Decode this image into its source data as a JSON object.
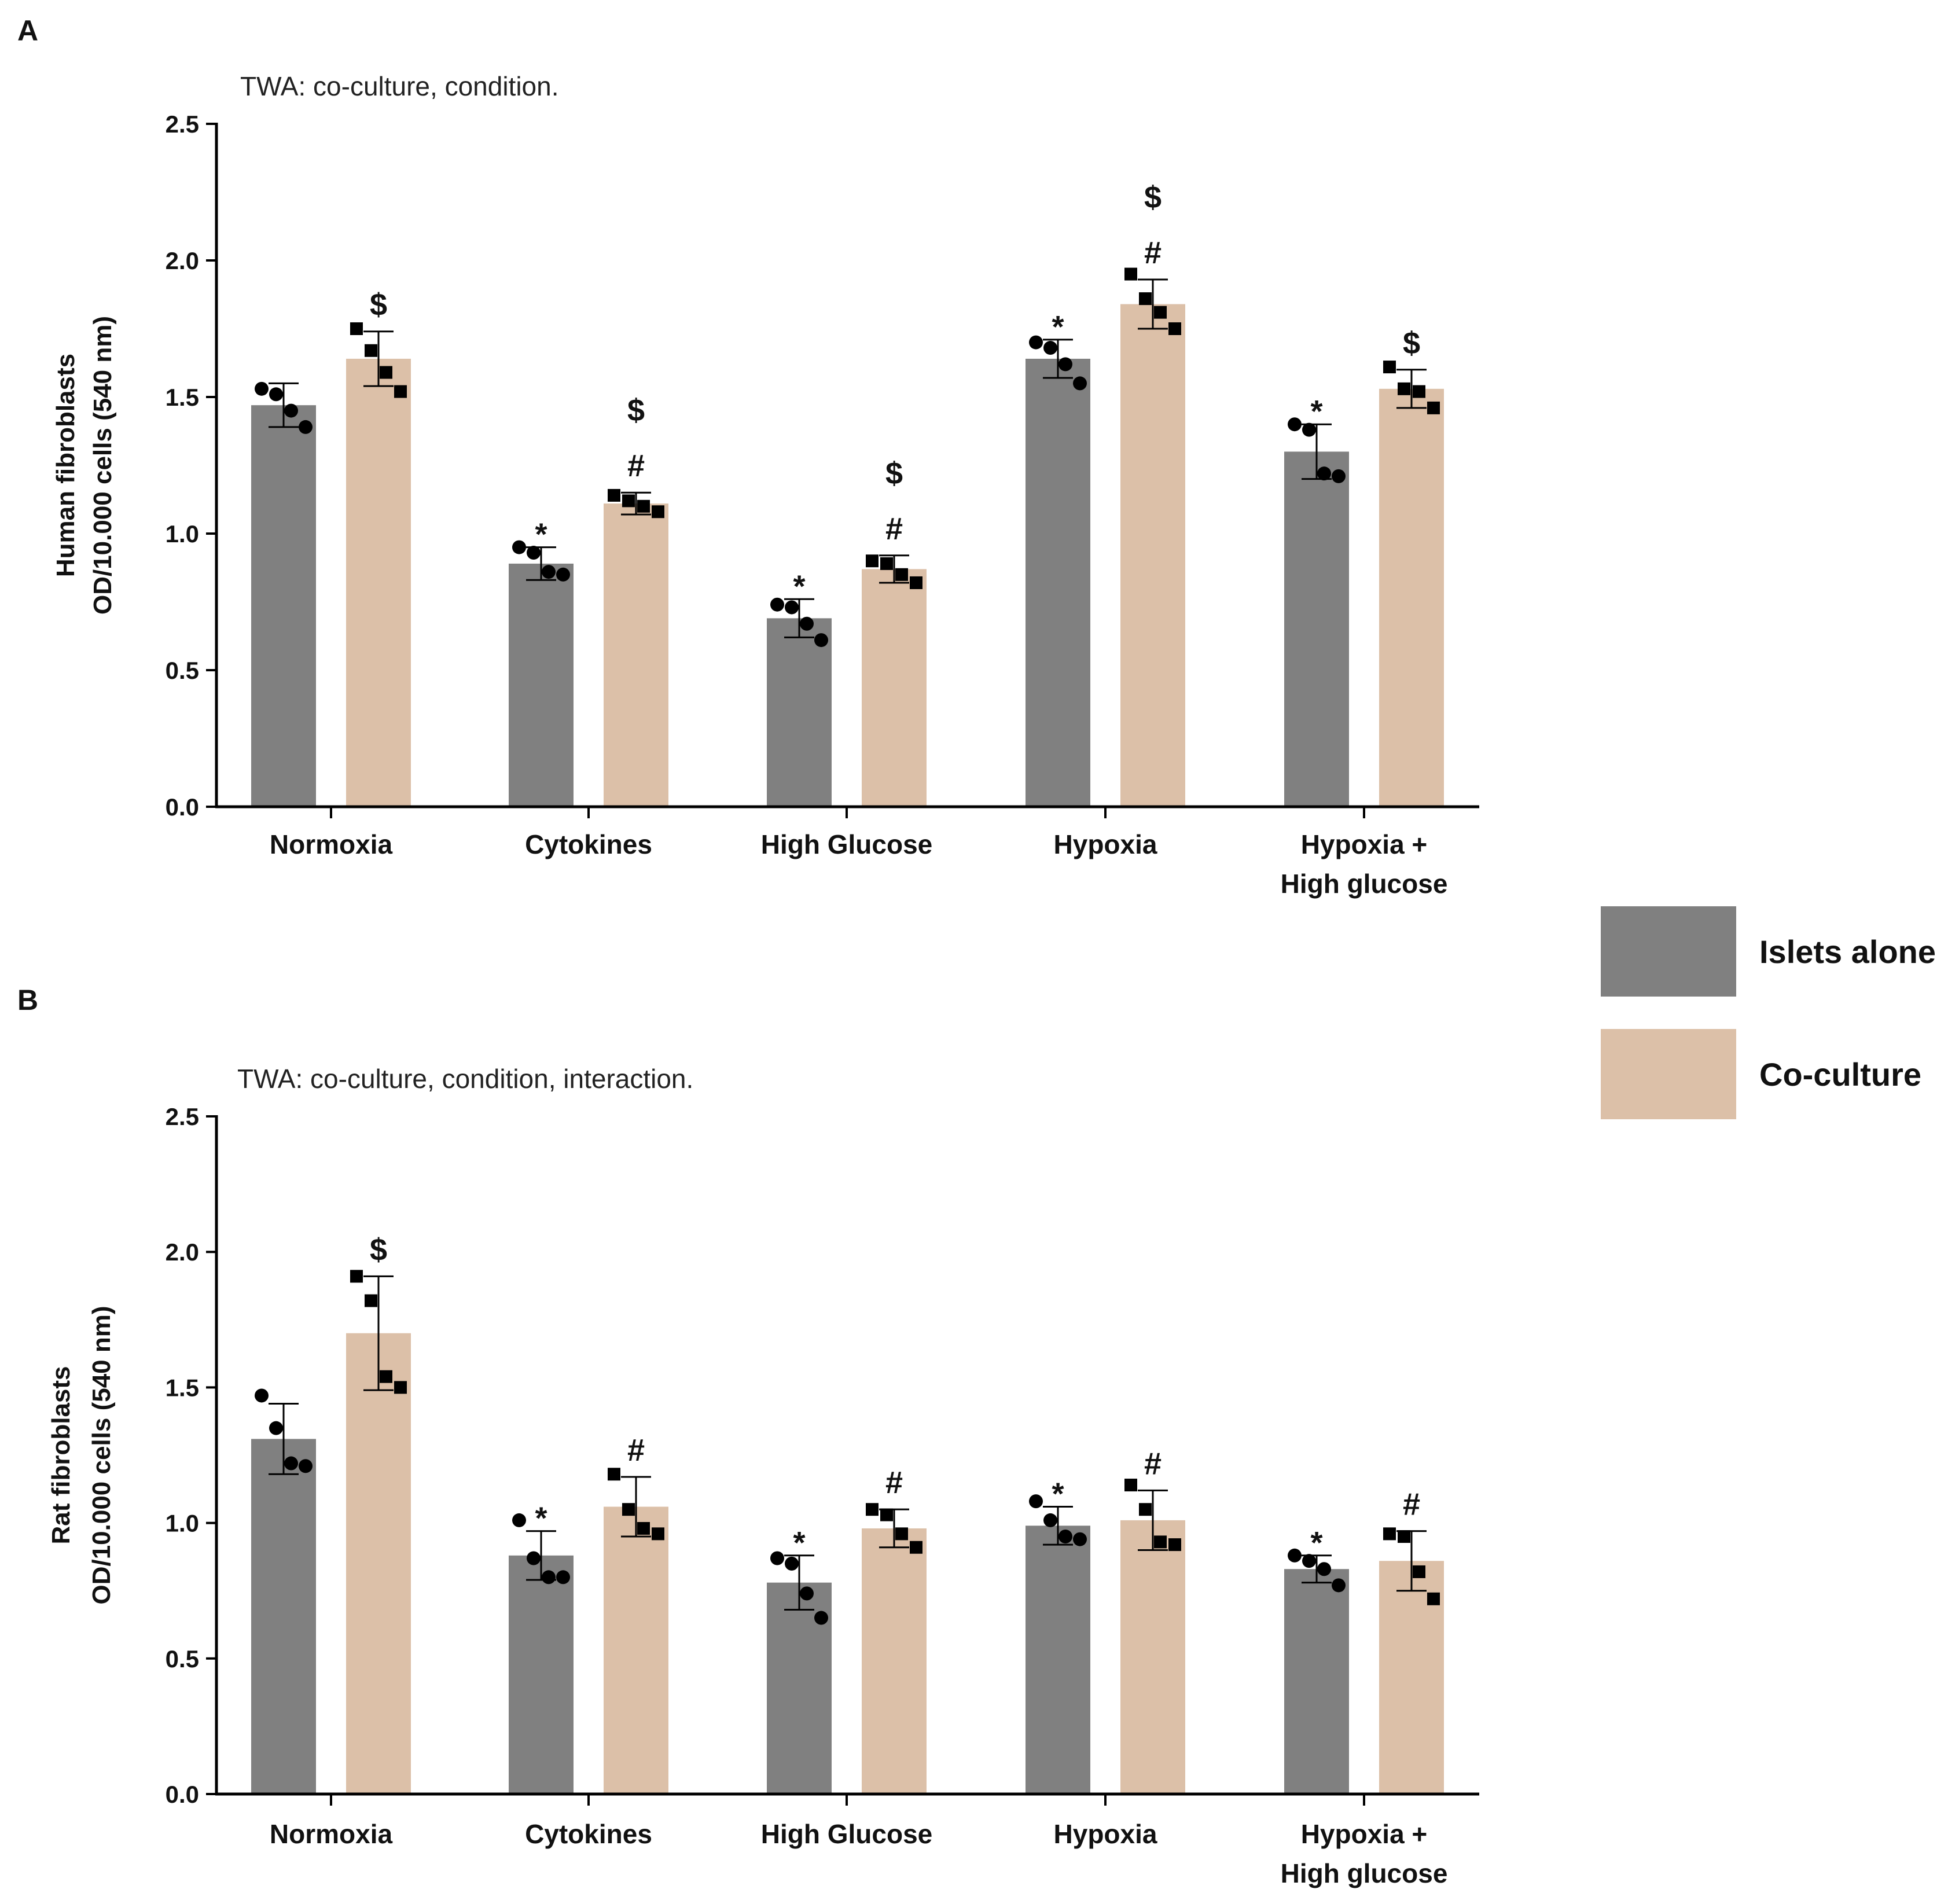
{
  "colors": {
    "islets_alone": "#808080",
    "co_culture": "#dcc0a8",
    "axis": "#000000",
    "points": "#000000"
  },
  "legend": {
    "items": [
      {
        "label": "Islets alone",
        "color": "#808080"
      },
      {
        "label": "Co-culture",
        "color": "#dcc0a8"
      }
    ]
  },
  "chart_data": [
    {
      "panel": "A",
      "type": "bar",
      "title": "TWA: co-culture, condition.",
      "ylabel": [
        "Human fibroblasts",
        "OD/10.000 cells (540 nm)"
      ],
      "ylim": [
        0,
        2.5
      ],
      "yticks": [
        0.0,
        0.5,
        1.0,
        1.5,
        2.0,
        2.5
      ],
      "ytick_labels": [
        "0.0",
        "0.5",
        "1.0",
        "1.5",
        "2.0",
        "2.5"
      ],
      "categories": [
        [
          "Normoxia"
        ],
        [
          "Cytokines"
        ],
        [
          "High Glucose"
        ],
        [
          "Hypoxia"
        ],
        [
          "Hypoxia +",
          "High glucose"
        ]
      ],
      "series": [
        {
          "name": "Islets alone",
          "marker": "circle",
          "values": [
            1.47,
            0.89,
            0.69,
            1.64,
            1.3
          ],
          "errors": [
            0.08,
            0.06,
            0.07,
            0.07,
            0.1
          ],
          "points": [
            [
              1.53,
              1.51,
              1.45,
              1.39
            ],
            [
              0.95,
              0.93,
              0.86,
              0.85
            ],
            [
              0.74,
              0.73,
              0.67,
              0.61
            ],
            [
              1.7,
              1.68,
              1.62,
              1.55
            ],
            [
              1.4,
              1.38,
              1.22,
              1.21
            ]
          ],
          "annotations": [
            "",
            "*",
            "*",
            "*",
            "*"
          ]
        },
        {
          "name": "Co-culture",
          "marker": "square",
          "values": [
            1.64,
            1.11,
            0.87,
            1.84,
            1.53
          ],
          "errors": [
            0.1,
            0.04,
            0.05,
            0.09,
            0.07
          ],
          "points": [
            [
              1.75,
              1.67,
              1.59,
              1.52
            ],
            [
              1.14,
              1.12,
              1.1,
              1.08
            ],
            [
              0.9,
              0.89,
              0.85,
              0.82
            ],
            [
              1.95,
              1.86,
              1.81,
              1.75
            ],
            [
              1.61,
              1.53,
              1.52,
              1.46
            ]
          ],
          "annotations": [
            "$",
            "$|#",
            "$|#",
            "$|#",
            "$"
          ]
        }
      ]
    },
    {
      "panel": "B",
      "type": "bar",
      "title": "TWA: co-culture, condition, interaction.",
      "ylabel": [
        "Rat fibroblasts",
        "OD/10.000 cells (540 nm)"
      ],
      "ylim": [
        0,
        2.5
      ],
      "yticks": [
        0.0,
        0.5,
        1.0,
        1.5,
        2.0,
        2.5
      ],
      "ytick_labels": [
        "0.0",
        "0.5",
        "1.0",
        "1.5",
        "2.0",
        "2.5"
      ],
      "categories": [
        [
          "Normoxia"
        ],
        [
          "Cytokines"
        ],
        [
          "High Glucose"
        ],
        [
          "Hypoxia"
        ],
        [
          "Hypoxia +",
          "High glucose"
        ]
      ],
      "series": [
        {
          "name": "Islets alone",
          "marker": "circle",
          "values": [
            1.31,
            0.88,
            0.78,
            0.99,
            0.83
          ],
          "errors": [
            0.13,
            0.09,
            0.1,
            0.07,
            0.05
          ],
          "points": [
            [
              1.47,
              1.35,
              1.22,
              1.21
            ],
            [
              1.01,
              0.87,
              0.8,
              0.8
            ],
            [
              0.87,
              0.85,
              0.74,
              0.65
            ],
            [
              1.08,
              1.01,
              0.95,
              0.94
            ],
            [
              0.88,
              0.86,
              0.83,
              0.77
            ]
          ],
          "annotations": [
            "",
            "*",
            "*",
            "*",
            "*"
          ]
        },
        {
          "name": "Co-culture",
          "marker": "square",
          "values": [
            1.7,
            1.06,
            0.98,
            1.01,
            0.86
          ],
          "errors": [
            0.21,
            0.11,
            0.07,
            0.11,
            0.11
          ],
          "points": [
            [
              1.91,
              1.82,
              1.54,
              1.5
            ],
            [
              1.18,
              1.05,
              0.98,
              0.96
            ],
            [
              1.05,
              1.03,
              0.96,
              0.91
            ],
            [
              1.14,
              1.05,
              0.93,
              0.92
            ],
            [
              0.96,
              0.95,
              0.82,
              0.72
            ]
          ],
          "annotations": [
            "$",
            "#",
            "#",
            "#",
            "#"
          ]
        }
      ]
    }
  ]
}
